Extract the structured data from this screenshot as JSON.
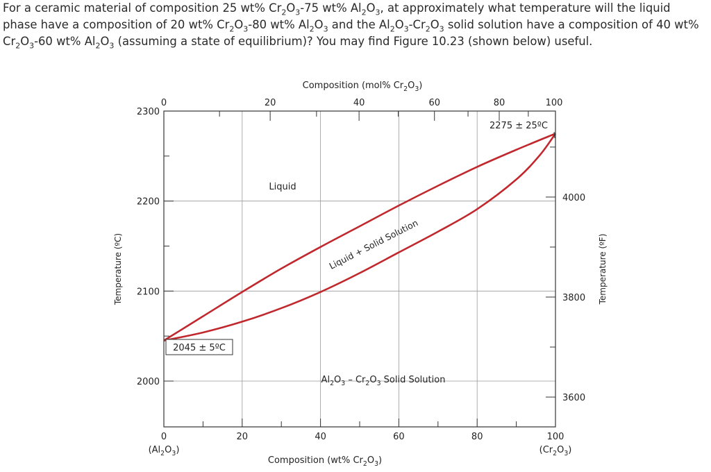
{
  "question": {
    "parts": [
      {
        "t": "For a ceramic material of composition 25 wt% Cr"
      },
      {
        "s": "2"
      },
      {
        "t": "O"
      },
      {
        "s": "3"
      },
      {
        "t": "-75 wt% Al"
      },
      {
        "s": "2"
      },
      {
        "t": "O"
      },
      {
        "s": "3"
      },
      {
        "t": ", at approximately what temperature will the liquid phase have a composition of 20 wt% Cr"
      },
      {
        "s": "2"
      },
      {
        "t": "O"
      },
      {
        "s": "3"
      },
      {
        "t": "-80 wt% Al"
      },
      {
        "s": "2"
      },
      {
        "t": "O"
      },
      {
        "s": "3"
      },
      {
        "t": " and the Al"
      },
      {
        "s": "2"
      },
      {
        "t": "O"
      },
      {
        "s": "3"
      },
      {
        "t": "-Cr"
      },
      {
        "s": "2"
      },
      {
        "t": "O"
      },
      {
        "s": "3"
      },
      {
        "t": " solid solution have a composition of 40 wt% Cr"
      },
      {
        "s": "2"
      },
      {
        "t": "O"
      },
      {
        "s": "3"
      },
      {
        "t": "-60 wt% Al"
      },
      {
        "s": "2"
      },
      {
        "t": "O"
      },
      {
        "s": "3"
      },
      {
        "t": " (assuming a state of equilibrium)? You may find Figure 10.23 (shown below) useful."
      }
    ]
  },
  "chart_data": {
    "type": "line",
    "xlim": [
      0,
      100
    ],
    "ylim": [
      1960,
      2300
    ],
    "grid": true,
    "xlabel": {
      "parts": [
        {
          "t": "Composition (wt% Cr"
        },
        {
          "s": "2"
        },
        {
          "t": "O"
        },
        {
          "s": "3"
        },
        {
          "t": ")"
        }
      ]
    },
    "x2label": {
      "parts": [
        {
          "t": "Composition (mol% Cr"
        },
        {
          "s": "2"
        },
        {
          "t": "O"
        },
        {
          "s": "3"
        },
        {
          "t": ")"
        }
      ]
    },
    "ylabel": "Temperature (ºC)",
    "y2label": "Temperature (ºF)",
    "x_ticks": [
      {
        "v": 0,
        "label": "0"
      },
      {
        "v": 20,
        "label": "20"
      },
      {
        "v": 40,
        "label": "40"
      },
      {
        "v": 60,
        "label": "60"
      },
      {
        "v": 80,
        "label": "80"
      },
      {
        "v": 100,
        "label": "100"
      }
    ],
    "x_end_labels": [
      {
        "v": 0,
        "parts": [
          {
            "t": "(Al"
          },
          {
            "s": "2"
          },
          {
            "t": "O"
          },
          {
            "s": "3"
          },
          {
            "t": ")"
          }
        ]
      },
      {
        "v": 100,
        "parts": [
          {
            "t": "(Cr"
          },
          {
            "s": "2"
          },
          {
            "t": "O"
          },
          {
            "s": "3"
          },
          {
            "t": ")"
          }
        ]
      }
    ],
    "x2_ticks": [
      {
        "v": 0,
        "label": "0"
      },
      {
        "v": 20,
        "label": "20"
      },
      {
        "v": 40,
        "label": "40"
      },
      {
        "v": 60,
        "label": "60"
      },
      {
        "v": 80,
        "label": "80"
      },
      {
        "v": 100,
        "label": "100"
      }
    ],
    "y_ticks": [
      {
        "v": 2000,
        "label": "2000"
      },
      {
        "v": 2100,
        "label": "2100"
      },
      {
        "v": 2200,
        "label": "2200"
      },
      {
        "v": 2300,
        "label": "2300"
      }
    ],
    "y2_ticks": [
      {
        "v": 3600,
        "label": "3600"
      },
      {
        "v": 3800,
        "label": "3800"
      },
      {
        "v": 4000,
        "label": "4000"
      }
    ],
    "series": [
      {
        "name": "liquidus",
        "color": "#c0282d",
        "x": [
          0,
          10,
          20,
          30,
          40,
          50,
          60,
          70,
          80,
          90,
          100
        ],
        "y": [
          2045,
          2072,
          2099,
          2125,
          2149,
          2172,
          2195,
          2217,
          2238,
          2257,
          2275
        ]
      },
      {
        "name": "solidus",
        "color": "#c0282d",
        "x": [
          0,
          10,
          20,
          30,
          40,
          50,
          60,
          70,
          80,
          90,
          96,
          100
        ],
        "y": [
          2045,
          2054,
          2066,
          2081,
          2099,
          2120,
          2143,
          2166,
          2191,
          2224,
          2251,
          2275
        ]
      }
    ],
    "annotations": [
      {
        "text": "2275 ± 25ºC"
      },
      {
        "text": "2045 ± 5ºC"
      },
      {
        "text": "Liquid"
      },
      {
        "text": "Liquid + Solid Solution"
      },
      {
        "parts": [
          {
            "t": "Al"
          },
          {
            "s": "2"
          },
          {
            "t": "O"
          },
          {
            "s": "3"
          },
          {
            "t": " – Cr"
          },
          {
            "s": "2"
          },
          {
            "t": "O"
          },
          {
            "s": "3"
          },
          {
            "t": " Solid Solution"
          }
        ]
      }
    ]
  }
}
